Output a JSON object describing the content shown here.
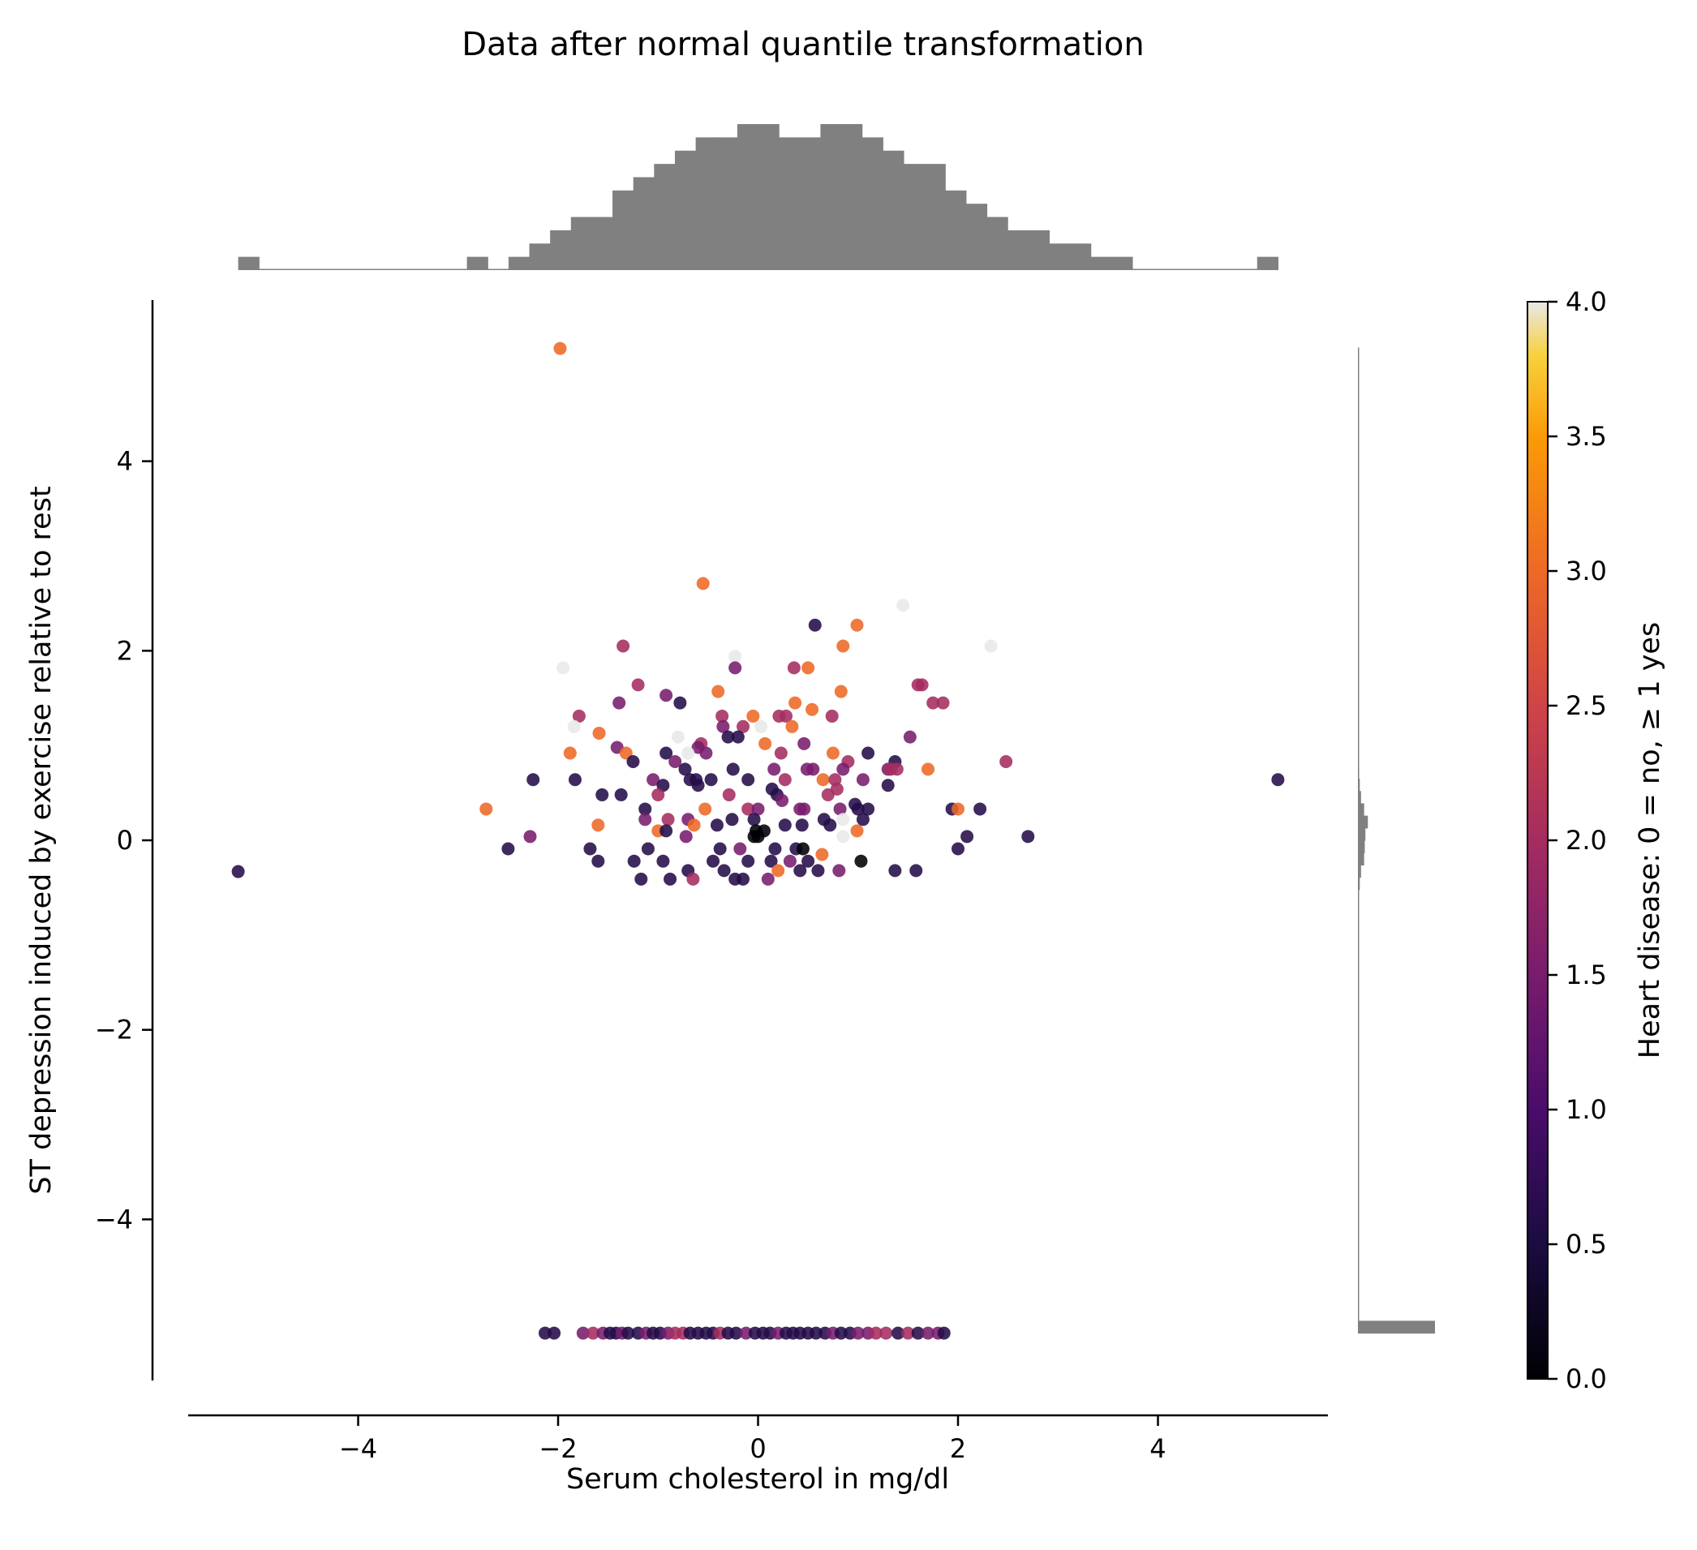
{
  "chart_data": {
    "type": "scatter",
    "title": "Data after normal quantile transformation",
    "xlabel": "Serum cholesterol in mg/dl",
    "ylabel": "ST depression induced by exercise relative to rest",
    "xlim": [
      -5.7,
      5.7
    ],
    "ylim": [
      -5.7,
      5.7
    ],
    "xticks": [
      -4,
      -2,
      0,
      2,
      4
    ],
    "yticks": [
      -4,
      -2,
      0,
      2,
      4
    ],
    "grid": false,
    "colorbar": {
      "label": "Heart disease: 0 =  no,  ≥ 1 yes",
      "range": [
        0,
        4
      ],
      "ticks": [
        0.0,
        0.5,
        1.0,
        1.5,
        2.0,
        2.5,
        3.0,
        3.5,
        4.0
      ],
      "tick_labels": [
        "0.0",
        "0.5",
        "1.0",
        "1.5",
        "2.0",
        "2.5",
        "3.0",
        "3.5",
        "4.0"
      ],
      "colormap": "inferno"
    },
    "marginals": {
      "x_histogram": {
        "bin_edges": [
          -5.2,
          5.2
        ],
        "counts": [
          1,
          0,
          0,
          0,
          0,
          0,
          0,
          0,
          0,
          0,
          0,
          1,
          0,
          1,
          2,
          3,
          4,
          4,
          6,
          7,
          8,
          9,
          10,
          10,
          11,
          11,
          10,
          10,
          11,
          11,
          10,
          9,
          8,
          8,
          6,
          5,
          4,
          3,
          3,
          2,
          2,
          1,
          1,
          0,
          0,
          0,
          0,
          0,
          0,
          1
        ]
      },
      "y_histogram": {
        "bin_edges": [
          -5.2,
          5.2
        ],
        "counts": [
          124,
          0,
          0,
          0,
          0,
          0,
          0,
          0,
          0,
          0,
          0,
          0,
          0,
          0,
          0,
          0,
          0,
          0,
          0,
          0,
          0,
          0,
          0,
          0,
          0,
          0,
          0,
          0,
          0,
          0,
          0,
          0,
          0,
          0,
          0,
          0,
          3,
          5,
          10,
          11,
          12,
          16,
          10,
          5,
          3,
          2,
          1,
          1,
          1,
          0,
          0,
          0,
          0,
          0,
          0,
          0,
          0,
          0,
          0,
          0,
          0,
          0,
          0,
          0,
          0,
          0,
          0,
          0,
          0,
          0,
          0,
          0,
          0,
          0,
          0,
          0,
          0,
          0,
          0,
          1
        ],
        "color": "#808080"
      },
      "color": "#808080"
    },
    "points": [
      {
        "x": -1.98,
        "y": 5.19,
        "c": 3.0
      },
      {
        "x": -5.2,
        "y": -0.33,
        "c": 0.6
      },
      {
        "x": 5.2,
        "y": 0.64,
        "c": 0.6
      },
      {
        "x": -0.55,
        "y": 2.71,
        "c": 3.0
      },
      {
        "x": 1.45,
        "y": 2.48,
        "c": 4.0
      },
      {
        "x": 0.57,
        "y": 2.27,
        "c": 0.6
      },
      {
        "x": 0.99,
        "y": 2.27,
        "c": 3.0
      },
      {
        "x": 2.33,
        "y": 2.05,
        "c": 4.0
      },
      {
        "x": 0.85,
        "y": 2.05,
        "c": 3.0
      },
      {
        "x": -1.35,
        "y": 2.05,
        "c": 2.0
      },
      {
        "x": -0.23,
        "y": 1.94,
        "c": 4.0
      },
      {
        "x": -1.95,
        "y": 1.82,
        "c": 4.0
      },
      {
        "x": 0.36,
        "y": 1.82,
        "c": 2.0
      },
      {
        "x": 0.5,
        "y": 1.82,
        "c": 3.0
      },
      {
        "x": -0.23,
        "y": 1.82,
        "c": 1.5
      },
      {
        "x": -1.2,
        "y": 1.64,
        "c": 2.0
      },
      {
        "x": 1.64,
        "y": 1.64,
        "c": 2.0
      },
      {
        "x": 1.6,
        "y": 1.64,
        "c": 2.0
      },
      {
        "x": -0.4,
        "y": 1.57,
        "c": 3.0
      },
      {
        "x": 0.83,
        "y": 1.57,
        "c": 3.0
      },
      {
        "x": -0.92,
        "y": 1.53,
        "c": 1.5
      },
      {
        "x": -0.78,
        "y": 1.45,
        "c": 0.6
      },
      {
        "x": 0.37,
        "y": 1.45,
        "c": 3.0
      },
      {
        "x": -1.39,
        "y": 1.45,
        "c": 1.5
      },
      {
        "x": 1.75,
        "y": 1.45,
        "c": 2.0
      },
      {
        "x": 1.85,
        "y": 1.45,
        "c": 2.0
      },
      {
        "x": 0.54,
        "y": 1.38,
        "c": 3.0
      },
      {
        "x": -1.79,
        "y": 1.31,
        "c": 2.0
      },
      {
        "x": -0.36,
        "y": 1.31,
        "c": 2.0
      },
      {
        "x": 0.74,
        "y": 1.31,
        "c": 2.0
      },
      {
        "x": -0.05,
        "y": 1.31,
        "c": 3.0
      },
      {
        "x": 0.21,
        "y": 1.31,
        "c": 2.0
      },
      {
        "x": 0.28,
        "y": 1.31,
        "c": 2.0
      },
      {
        "x": -1.84,
        "y": 1.2,
        "c": 4.0
      },
      {
        "x": -1.59,
        "y": 1.13,
        "c": 3.0
      },
      {
        "x": -0.15,
        "y": 1.2,
        "c": 2.0
      },
      {
        "x": 0.03,
        "y": 1.2,
        "c": 4.0
      },
      {
        "x": 0.34,
        "y": 1.2,
        "c": 3.0
      },
      {
        "x": -0.35,
        "y": 1.2,
        "c": 1.5
      },
      {
        "x": -0.8,
        "y": 1.09,
        "c": 4.0
      },
      {
        "x": -0.3,
        "y": 1.09,
        "c": 0.6
      },
      {
        "x": 1.52,
        "y": 1.09,
        "c": 1.5
      },
      {
        "x": -0.2,
        "y": 1.09,
        "c": 0.6
      },
      {
        "x": -0.57,
        "y": 1.02,
        "c": 2.0
      },
      {
        "x": 0.07,
        "y": 1.02,
        "c": 3.0
      },
      {
        "x": 0.46,
        "y": 1.02,
        "c": 1.5
      },
      {
        "x": -1.41,
        "y": 0.98,
        "c": 1.5
      },
      {
        "x": -0.6,
        "y": 0.98,
        "c": 1.5
      },
      {
        "x": -1.32,
        "y": 0.92,
        "c": 3.0
      },
      {
        "x": -1.88,
        "y": 0.92,
        "c": 3.0
      },
      {
        "x": -0.7,
        "y": 0.92,
        "c": 4.0
      },
      {
        "x": -0.92,
        "y": 0.92,
        "c": 0.6
      },
      {
        "x": -0.52,
        "y": 0.92,
        "c": 1.5
      },
      {
        "x": 0.23,
        "y": 0.92,
        "c": 2.0
      },
      {
        "x": 0.75,
        "y": 0.92,
        "c": 3.0
      },
      {
        "x": 1.1,
        "y": 0.92,
        "c": 0.6
      },
      {
        "x": -1.25,
        "y": 0.83,
        "c": 0.6
      },
      {
        "x": -0.83,
        "y": 0.83,
        "c": 1.5
      },
      {
        "x": 0.9,
        "y": 0.83,
        "c": 2.0
      },
      {
        "x": 1.37,
        "y": 0.83,
        "c": 0.6
      },
      {
        "x": 2.48,
        "y": 0.83,
        "c": 2.0
      },
      {
        "x": -0.73,
        "y": 0.75,
        "c": 0.6
      },
      {
        "x": -0.25,
        "y": 0.75,
        "c": 0.6
      },
      {
        "x": 0.16,
        "y": 0.75,
        "c": 1.5
      },
      {
        "x": 0.49,
        "y": 0.75,
        "c": 1.5
      },
      {
        "x": 0.55,
        "y": 0.75,
        "c": 1.5
      },
      {
        "x": 0.85,
        "y": 0.75,
        "c": 1.5
      },
      {
        "x": 1.3,
        "y": 0.75,
        "c": 1.5
      },
      {
        "x": 1.33,
        "y": 0.75,
        "c": 2.0
      },
      {
        "x": 1.39,
        "y": 0.75,
        "c": 2.0
      },
      {
        "x": 1.7,
        "y": 0.75,
        "c": 3.0
      },
      {
        "x": -2.25,
        "y": 0.64,
        "c": 0.6
      },
      {
        "x": -1.83,
        "y": 0.64,
        "c": 0.6
      },
      {
        "x": -1.05,
        "y": 0.64,
        "c": 1.5
      },
      {
        "x": -0.68,
        "y": 0.64,
        "c": 0.6
      },
      {
        "x": -0.62,
        "y": 0.64,
        "c": 0.6
      },
      {
        "x": -0.47,
        "y": 0.64,
        "c": 0.6
      },
      {
        "x": -0.1,
        "y": 0.64,
        "c": 0.6
      },
      {
        "x": 0.27,
        "y": 0.64,
        "c": 2.0
      },
      {
        "x": 0.65,
        "y": 0.64,
        "c": 3.0
      },
      {
        "x": 0.77,
        "y": 0.64,
        "c": 2.0
      },
      {
        "x": 1.05,
        "y": 0.64,
        "c": 1.5
      },
      {
        "x": 1.3,
        "y": 0.58,
        "c": 0.6
      },
      {
        "x": -0.95,
        "y": 0.58,
        "c": 0.6
      },
      {
        "x": -0.6,
        "y": 0.58,
        "c": 0.6
      },
      {
        "x": 0.14,
        "y": 0.54,
        "c": 0.6
      },
      {
        "x": 0.79,
        "y": 0.54,
        "c": 2.0
      },
      {
        "x": -1.56,
        "y": 0.48,
        "c": 0.6
      },
      {
        "x": -1.37,
        "y": 0.48,
        "c": 0.6
      },
      {
        "x": -1.0,
        "y": 0.48,
        "c": 2.0
      },
      {
        "x": -0.29,
        "y": 0.48,
        "c": 2.0
      },
      {
        "x": 0.19,
        "y": 0.48,
        "c": 0.6
      },
      {
        "x": 0.7,
        "y": 0.48,
        "c": 2.0
      },
      {
        "x": 0.24,
        "y": 0.42,
        "c": 1.5
      },
      {
        "x": 0.97,
        "y": 0.38,
        "c": 0.6
      },
      {
        "x": -2.72,
        "y": 0.33,
        "c": 3.0
      },
      {
        "x": -1.13,
        "y": 0.33,
        "c": 0.6
      },
      {
        "x": -0.53,
        "y": 0.33,
        "c": 3.0
      },
      {
        "x": -0.1,
        "y": 0.33,
        "c": 2.0
      },
      {
        "x": 0.0,
        "y": 0.33,
        "c": 1.5
      },
      {
        "x": 0.42,
        "y": 0.33,
        "c": 1.5
      },
      {
        "x": 0.46,
        "y": 0.33,
        "c": 1.5
      },
      {
        "x": 0.82,
        "y": 0.33,
        "c": 1.5
      },
      {
        "x": 1.0,
        "y": 0.33,
        "c": 0.6
      },
      {
        "x": 1.1,
        "y": 0.33,
        "c": 0.6
      },
      {
        "x": 1.94,
        "y": 0.33,
        "c": 0.6
      },
      {
        "x": 2.0,
        "y": 0.33,
        "c": 3.0
      },
      {
        "x": 2.22,
        "y": 0.33,
        "c": 0.6
      },
      {
        "x": -1.13,
        "y": 0.22,
        "c": 1.5
      },
      {
        "x": -0.9,
        "y": 0.22,
        "c": 2.0
      },
      {
        "x": -0.7,
        "y": 0.22,
        "c": 1.5
      },
      {
        "x": -0.26,
        "y": 0.22,
        "c": 0.6
      },
      {
        "x": -0.04,
        "y": 0.22,
        "c": 0.6
      },
      {
        "x": 0.66,
        "y": 0.22,
        "c": 0.6
      },
      {
        "x": 0.85,
        "y": 0.22,
        "c": 4.0
      },
      {
        "x": 1.05,
        "y": 0.22,
        "c": 0.6
      },
      {
        "x": -1.6,
        "y": 0.16,
        "c": 3.0
      },
      {
        "x": -0.64,
        "y": 0.16,
        "c": 3.0
      },
      {
        "x": -0.41,
        "y": 0.16,
        "c": 0.6
      },
      {
        "x": 0.27,
        "y": 0.16,
        "c": 0.6
      },
      {
        "x": 0.44,
        "y": 0.16,
        "c": 0.6
      },
      {
        "x": 0.72,
        "y": 0.16,
        "c": 0.6
      },
      {
        "x": -1.0,
        "y": 0.1,
        "c": 3.0
      },
      {
        "x": -0.92,
        "y": 0.1,
        "c": 0.6
      },
      {
        "x": -0.02,
        "y": 0.1,
        "c": 0.0
      },
      {
        "x": 0.06,
        "y": 0.1,
        "c": 0.0
      },
      {
        "x": 0.99,
        "y": 0.1,
        "c": 3.0
      },
      {
        "x": 2.09,
        "y": 0.04,
        "c": 0.6
      },
      {
        "x": 2.7,
        "y": 0.04,
        "c": 0.6
      },
      {
        "x": -2.28,
        "y": 0.04,
        "c": 1.5
      },
      {
        "x": -0.72,
        "y": 0.04,
        "c": 1.5
      },
      {
        "x": -0.04,
        "y": 0.04,
        "c": 0.0
      },
      {
        "x": 0.0,
        "y": 0.04,
        "c": 0.0
      },
      {
        "x": 0.85,
        "y": 0.04,
        "c": 4.0
      },
      {
        "x": -1.68,
        "y": -0.09,
        "c": 0.6
      },
      {
        "x": -2.5,
        "y": -0.09,
        "c": 0.6
      },
      {
        "x": -1.1,
        "y": -0.09,
        "c": 0.6
      },
      {
        "x": -0.38,
        "y": -0.09,
        "c": 0.6
      },
      {
        "x": -0.18,
        "y": -0.09,
        "c": 1.5
      },
      {
        "x": 0.17,
        "y": -0.09,
        "c": 0.6
      },
      {
        "x": 0.38,
        "y": -0.09,
        "c": 0.6
      },
      {
        "x": 0.45,
        "y": -0.09,
        "c": 0.0
      },
      {
        "x": 0.64,
        "y": -0.15,
        "c": 3.0
      },
      {
        "x": 1.03,
        "y": -0.22,
        "c": 0.0
      },
      {
        "x": 2.0,
        "y": -0.09,
        "c": 0.6
      },
      {
        "x": -1.6,
        "y": -0.22,
        "c": 0.6
      },
      {
        "x": -1.24,
        "y": -0.22,
        "c": 0.6
      },
      {
        "x": -0.95,
        "y": -0.22,
        "c": 0.6
      },
      {
        "x": -0.45,
        "y": -0.22,
        "c": 0.6
      },
      {
        "x": -0.1,
        "y": -0.22,
        "c": 0.6
      },
      {
        "x": 0.13,
        "y": -0.22,
        "c": 0.6
      },
      {
        "x": 0.32,
        "y": -0.22,
        "c": 1.5
      },
      {
        "x": 0.5,
        "y": -0.22,
        "c": 0.6
      },
      {
        "x": -0.34,
        "y": -0.32,
        "c": 0.6
      },
      {
        "x": -0.7,
        "y": -0.32,
        "c": 0.6
      },
      {
        "x": 0.2,
        "y": -0.32,
        "c": 3.0
      },
      {
        "x": 0.42,
        "y": -0.32,
        "c": 0.6
      },
      {
        "x": 0.6,
        "y": -0.32,
        "c": 0.6
      },
      {
        "x": 0.81,
        "y": -0.32,
        "c": 1.5
      },
      {
        "x": 1.37,
        "y": -0.32,
        "c": 0.6
      },
      {
        "x": 1.58,
        "y": -0.32,
        "c": 0.6
      },
      {
        "x": -1.17,
        "y": -0.41,
        "c": 0.6
      },
      {
        "x": -0.88,
        "y": -0.41,
        "c": 0.6
      },
      {
        "x": -0.65,
        "y": -0.41,
        "c": 2.0
      },
      {
        "x": -0.23,
        "y": -0.41,
        "c": 0.6
      },
      {
        "x": -0.15,
        "y": -0.41,
        "c": 0.6
      },
      {
        "x": 0.1,
        "y": -0.41,
        "c": 1.5
      },
      {
        "x": -2.13,
        "y": -5.2,
        "c": 0.6
      },
      {
        "x": -2.04,
        "y": -5.2,
        "c": 0.6
      },
      {
        "x": -1.75,
        "y": -5.2,
        "c": 1.5
      },
      {
        "x": -1.65,
        "y": -5.2,
        "c": 2.0
      },
      {
        "x": -1.55,
        "y": -5.2,
        "c": 1.5
      },
      {
        "x": -1.48,
        "y": -5.2,
        "c": 0.6
      },
      {
        "x": -1.42,
        "y": -5.2,
        "c": 0.6
      },
      {
        "x": -1.36,
        "y": -5.2,
        "c": 1.5
      },
      {
        "x": -1.3,
        "y": -5.2,
        "c": 0.6
      },
      {
        "x": -1.2,
        "y": -5.2,
        "c": 0.6
      },
      {
        "x": -1.12,
        "y": -5.2,
        "c": 1.5
      },
      {
        "x": -1.05,
        "y": -5.2,
        "c": 0.6
      },
      {
        "x": -0.98,
        "y": -5.2,
        "c": 0.6
      },
      {
        "x": -0.9,
        "y": -5.2,
        "c": 1.5
      },
      {
        "x": -0.83,
        "y": -5.2,
        "c": 2.0
      },
      {
        "x": -0.75,
        "y": -5.2,
        "c": 2.0
      },
      {
        "x": -0.68,
        "y": -5.2,
        "c": 0.6
      },
      {
        "x": -0.6,
        "y": -5.2,
        "c": 0.6
      },
      {
        "x": -0.52,
        "y": -5.2,
        "c": 0.6
      },
      {
        "x": -0.45,
        "y": -5.2,
        "c": 0.6
      },
      {
        "x": -0.38,
        "y": -5.2,
        "c": 2.0
      },
      {
        "x": -0.3,
        "y": -5.2,
        "c": 0.6
      },
      {
        "x": -0.22,
        "y": -5.2,
        "c": 0.6
      },
      {
        "x": -0.12,
        "y": -5.2,
        "c": 1.5
      },
      {
        "x": -0.03,
        "y": -5.2,
        "c": 0.6
      },
      {
        "x": 0.05,
        "y": -5.2,
        "c": 0.6
      },
      {
        "x": 0.12,
        "y": -5.2,
        "c": 0.6
      },
      {
        "x": 0.2,
        "y": -5.2,
        "c": 1.5
      },
      {
        "x": 0.28,
        "y": -5.2,
        "c": 0.6
      },
      {
        "x": 0.35,
        "y": -5.2,
        "c": 0.6
      },
      {
        "x": 0.42,
        "y": -5.2,
        "c": 0.6
      },
      {
        "x": 0.5,
        "y": -5.2,
        "c": 0.6
      },
      {
        "x": 0.58,
        "y": -5.2,
        "c": 0.6
      },
      {
        "x": 0.67,
        "y": -5.2,
        "c": 0.6
      },
      {
        "x": 0.75,
        "y": -5.2,
        "c": 1.5
      },
      {
        "x": 0.83,
        "y": -5.2,
        "c": 0.6
      },
      {
        "x": 0.92,
        "y": -5.2,
        "c": 0.6
      },
      {
        "x": 1.0,
        "y": -5.2,
        "c": 1.5
      },
      {
        "x": 1.1,
        "y": -5.2,
        "c": 1.5
      },
      {
        "x": 1.18,
        "y": -5.2,
        "c": 2.0
      },
      {
        "x": 1.28,
        "y": -5.2,
        "c": 2.0
      },
      {
        "x": 1.4,
        "y": -5.2,
        "c": 0.6
      },
      {
        "x": 1.5,
        "y": -5.2,
        "c": 2.0
      },
      {
        "x": 1.6,
        "y": -5.2,
        "c": 0.6
      },
      {
        "x": 1.7,
        "y": -5.2,
        "c": 1.5
      },
      {
        "x": 1.8,
        "y": -5.2,
        "c": 1.5
      },
      {
        "x": 1.86,
        "y": -5.2,
        "c": 0.6
      }
    ]
  }
}
